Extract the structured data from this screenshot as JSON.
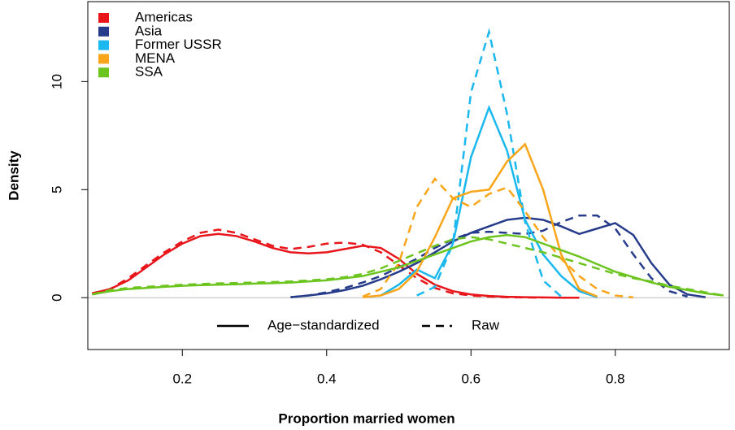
{
  "chart_data": {
    "type": "line",
    "x_label": "Proportion married women",
    "y_label": "Density",
    "xlim": [
      0.069,
      0.958
    ],
    "ylim": [
      -2.4,
      13.7
    ],
    "xticks": [
      0.2,
      0.4,
      0.6,
      0.8
    ],
    "yticks": [
      0,
      5,
      10
    ],
    "zero_line": true,
    "legend": "top-left",
    "linetype_legend": [
      "Age−standardized",
      "Raw"
    ],
    "x": [
      0.075,
      0.1,
      0.125,
      0.15,
      0.175,
      0.2,
      0.225,
      0.25,
      0.275,
      0.3,
      0.325,
      0.35,
      0.375,
      0.4,
      0.425,
      0.45,
      0.475,
      0.5,
      0.525,
      0.55,
      0.575,
      0.6,
      0.625,
      0.65,
      0.675,
      0.7,
      0.725,
      0.75,
      0.775,
      0.8,
      0.825,
      0.85,
      0.875,
      0.9,
      0.925,
      0.95
    ],
    "series": [
      {
        "name": "Americas",
        "color": "#e8161b",
        "values": [
          0.2,
          0.4,
          0.8,
          1.4,
          2.0,
          2.5,
          2.85,
          2.95,
          2.85,
          2.6,
          2.3,
          2.1,
          2.05,
          2.1,
          2.25,
          2.4,
          2.3,
          1.8,
          1.1,
          0.6,
          0.3,
          0.15,
          0.08,
          0.04,
          0.02,
          0.01,
          0,
          0,
          null,
          null,
          null,
          null,
          null,
          null,
          null,
          null
        ],
        "raw_values": [
          0.2,
          0.4,
          0.9,
          1.5,
          2.1,
          2.6,
          3.0,
          3.15,
          3.0,
          2.7,
          2.4,
          2.25,
          2.35,
          2.5,
          2.55,
          2.45,
          2.1,
          1.5,
          0.9,
          0.45,
          0.2,
          0.1,
          0.05,
          0.02,
          0.01,
          0,
          null,
          null,
          null,
          null,
          null,
          null,
          null,
          null,
          null,
          null
        ]
      },
      {
        "name": "Asia",
        "color": "#263c8b",
        "values": [
          null,
          null,
          null,
          null,
          null,
          null,
          null,
          null,
          null,
          null,
          null,
          0.02,
          0.1,
          0.2,
          0.35,
          0.55,
          0.85,
          1.2,
          1.6,
          2.1,
          2.6,
          3.0,
          3.3,
          3.6,
          3.7,
          3.6,
          3.3,
          2.95,
          3.2,
          3.45,
          2.9,
          1.6,
          0.6,
          0.15,
          0.02,
          null
        ],
        "raw_values": [
          null,
          null,
          null,
          null,
          null,
          null,
          null,
          null,
          null,
          null,
          null,
          0.02,
          0.1,
          0.25,
          0.45,
          0.7,
          1.0,
          1.4,
          1.8,
          2.3,
          2.7,
          3.0,
          3.05,
          3.0,
          2.95,
          3.1,
          3.5,
          3.8,
          3.8,
          3.2,
          2.0,
          0.9,
          0.3,
          0.05,
          null,
          null
        ]
      },
      {
        "name": "Former USSR",
        "color": "#1ab8ee",
        "values": [
          null,
          null,
          null,
          null,
          null,
          null,
          null,
          null,
          null,
          null,
          null,
          null,
          null,
          null,
          null,
          null,
          0.1,
          0.6,
          1.3,
          0.9,
          2.5,
          6.5,
          8.8,
          6.8,
          3.6,
          2.0,
          1.0,
          0.3,
          0.02,
          null,
          null,
          null,
          null,
          null,
          null,
          null
        ],
        "raw_values": [
          null,
          null,
          null,
          null,
          null,
          null,
          null,
          null,
          null,
          null,
          null,
          null,
          null,
          null,
          null,
          null,
          null,
          null,
          0.1,
          0.5,
          2.5,
          9.5,
          12.3,
          8.5,
          3.5,
          0.8,
          0.05,
          null,
          null,
          null,
          null,
          null,
          null,
          null,
          null,
          null
        ]
      },
      {
        "name": "MENA",
        "color": "#f9a51a",
        "values": [
          null,
          null,
          null,
          null,
          null,
          null,
          null,
          null,
          null,
          null,
          null,
          null,
          null,
          null,
          null,
          0.02,
          0.1,
          0.4,
          1.2,
          2.8,
          4.6,
          4.9,
          5.0,
          6.3,
          7.1,
          5.0,
          2.0,
          0.4,
          0.05,
          null,
          null,
          null,
          null,
          null,
          null,
          null
        ],
        "raw_values": [
          null,
          null,
          null,
          null,
          null,
          null,
          null,
          null,
          null,
          null,
          null,
          null,
          null,
          null,
          null,
          0.05,
          0.4,
          1.6,
          4.2,
          5.5,
          4.6,
          4.2,
          4.8,
          5.1,
          4.0,
          2.8,
          1.8,
          1.0,
          0.4,
          0.1,
          0.01,
          null,
          null,
          null,
          null,
          null
        ]
      },
      {
        "name": "SSA",
        "color": "#6cc51f",
        "values": [
          0.15,
          0.3,
          0.4,
          0.45,
          0.5,
          0.55,
          0.58,
          0.6,
          0.62,
          0.65,
          0.67,
          0.7,
          0.75,
          0.8,
          0.9,
          1.0,
          1.2,
          1.4,
          1.7,
          2.0,
          2.3,
          2.6,
          2.8,
          2.9,
          2.8,
          2.5,
          2.2,
          1.9,
          1.55,
          1.2,
          0.95,
          0.7,
          0.5,
          0.35,
          0.2,
          0.1
        ],
        "raw_values": [
          0.15,
          0.35,
          0.45,
          0.5,
          0.55,
          0.6,
          0.63,
          0.66,
          0.68,
          0.7,
          0.72,
          0.75,
          0.8,
          0.85,
          0.95,
          1.1,
          1.35,
          1.7,
          2.05,
          2.4,
          2.7,
          2.8,
          2.7,
          2.5,
          2.3,
          2.1,
          1.85,
          1.6,
          1.35,
          1.1,
          0.9,
          0.75,
          0.55,
          0.4,
          0.25,
          0.1
        ]
      }
    ]
  }
}
